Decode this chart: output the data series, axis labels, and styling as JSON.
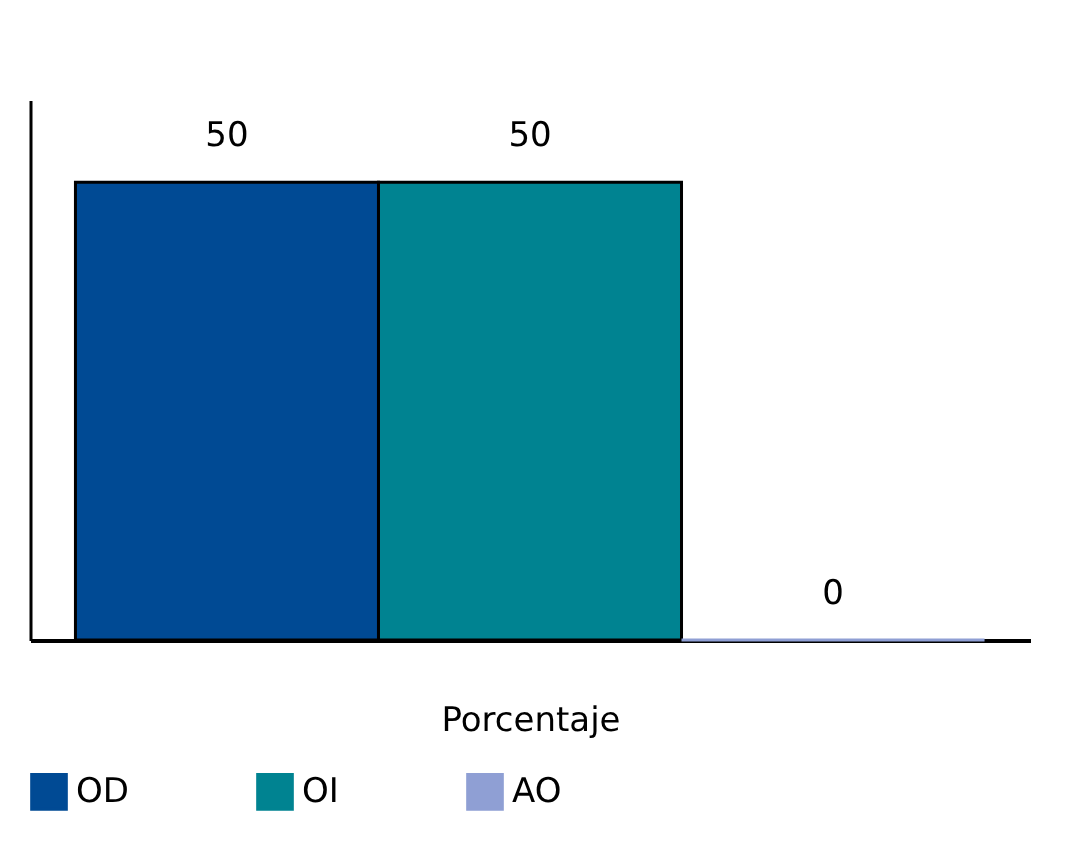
{
  "chart_data": {
    "type": "bar",
    "categories": [
      null
    ],
    "xlabel": "Porcentaje",
    "series": [
      {
        "name": "OD",
        "color": "#004a94",
        "values": [
          50
        ]
      },
      {
        "name": "OI",
        "color": "#008391",
        "values": [
          50
        ]
      },
      {
        "name": "AO",
        "color": "#8f9fd4",
        "values": [
          0
        ]
      }
    ],
    "data_labels": true,
    "legend": "bottom",
    "tick_labels": "x",
    "grid": false
  }
}
